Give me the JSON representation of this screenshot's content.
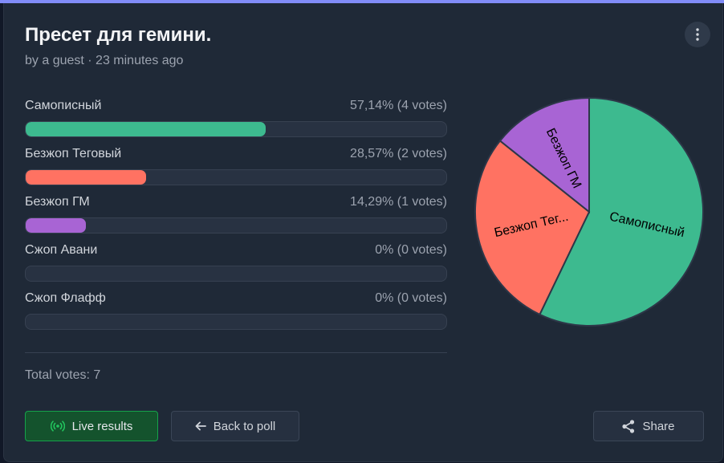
{
  "poll": {
    "title": "Пресет для гемини.",
    "meta": "by a guest · 23 minutes ago"
  },
  "menu": {
    "icon": "more-vertical-icon"
  },
  "options": [
    {
      "label": "Самописный",
      "stat": "57,14% (4 votes)",
      "percent": 57.14,
      "color": "#3dba8f"
    },
    {
      "label": "Безжоп Теговый",
      "stat": "28,57% (2 votes)",
      "percent": 28.57,
      "color": "#ff7262"
    },
    {
      "label": "Безжоп ГМ",
      "stat": "14,29% (1 votes)",
      "percent": 14.29,
      "color": "#a864d4"
    },
    {
      "label": "Сжоп Авани",
      "stat": "0% (0 votes)",
      "percent": 0,
      "color": "#6b7280"
    },
    {
      "label": "Сжоп Флафф",
      "stat": "0% (0 votes)",
      "percent": 0,
      "color": "#6b7280"
    }
  ],
  "total": "Total votes: 7",
  "chart_data": {
    "type": "pie",
    "slices": [
      {
        "label": "Самописный",
        "value": 4,
        "color": "#3dba8f"
      },
      {
        "label": "Безжоп Тег...",
        "value": 2,
        "color": "#ff7262"
      },
      {
        "label": "Безжоп ГМ",
        "value": 1,
        "color": "#a864d4"
      }
    ]
  },
  "buttons": {
    "live": "Live results",
    "back": "Back to poll",
    "share": "Share"
  },
  "colors": {
    "background": "#1f2937",
    "accent_bar": "#818cf8",
    "live_green": "#22c55e"
  }
}
